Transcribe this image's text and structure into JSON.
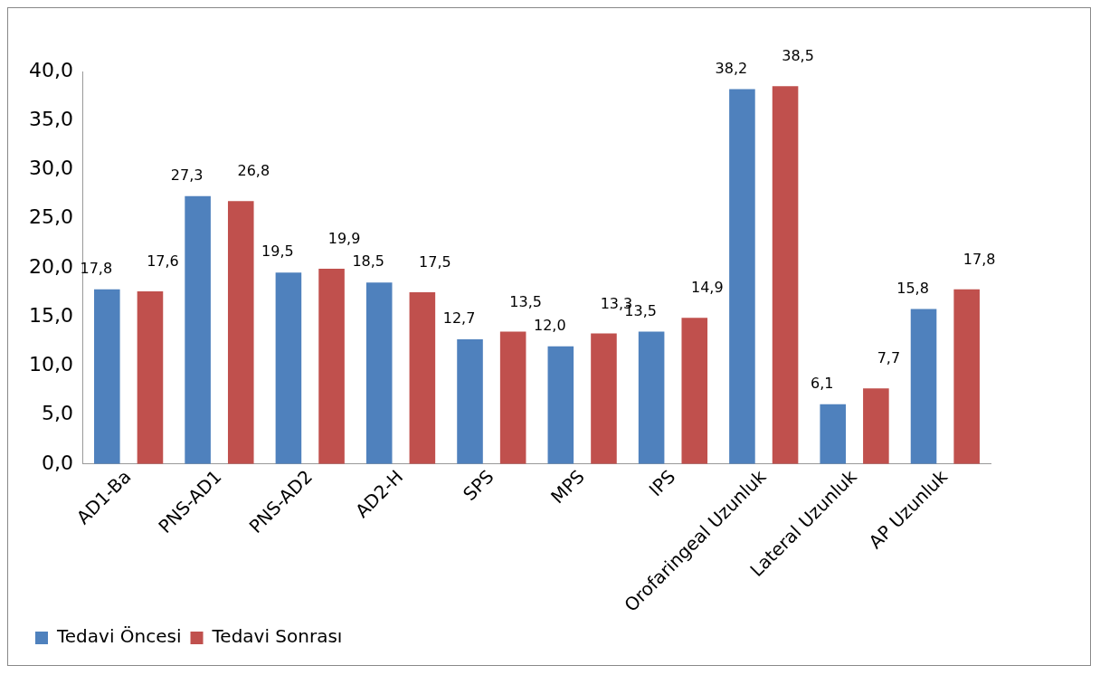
{
  "chart_data": {
    "type": "bar",
    "categories": [
      "AD1-Ba",
      "PNS-AD1",
      "PNS-AD2",
      "AD2-H",
      "SPS",
      "MPS",
      "IPS",
      "Orofaringeal Uzunluk",
      "Lateral Uzunluk",
      "AP Uzunluk"
    ],
    "series": [
      {
        "name": "Tedavi Öncesi",
        "color": "#4f81bd",
        "values": [
          17.8,
          27.3,
          19.5,
          18.5,
          12.7,
          12.0,
          13.5,
          38.2,
          6.1,
          15.8
        ],
        "value_labels": [
          "17,8",
          "27,3",
          "19,5",
          "18,5",
          "12,7",
          "12,0",
          "13,5",
          "38,2",
          "6,1",
          "15,8"
        ]
      },
      {
        "name": "Tedavi Sonrası",
        "color": "#c0504d",
        "values": [
          17.6,
          26.8,
          19.9,
          17.5,
          13.5,
          13.3,
          14.9,
          38.5,
          7.7,
          17.8
        ],
        "value_labels": [
          "17,6",
          "26,8",
          "19,9",
          "17,5",
          "13,5",
          "13,3",
          "14,9",
          "38,5",
          "7,7",
          "17,8"
        ]
      }
    ],
    "ylim": [
      0,
      40
    ],
    "yticks": [
      {
        "value": 0,
        "label": "0,0"
      },
      {
        "value": 5,
        "label": "5,0"
      },
      {
        "value": 10,
        "label": "10,0"
      },
      {
        "value": 15,
        "label": "15,0"
      },
      {
        "value": 20,
        "label": "20,0"
      },
      {
        "value": 25,
        "label": "25,0"
      },
      {
        "value": 30,
        "label": "30,0"
      },
      {
        "value": 35,
        "label": "35,0"
      },
      {
        "value": 40,
        "label": "40,0"
      }
    ],
    "grid": false,
    "legend": "bottom left"
  }
}
